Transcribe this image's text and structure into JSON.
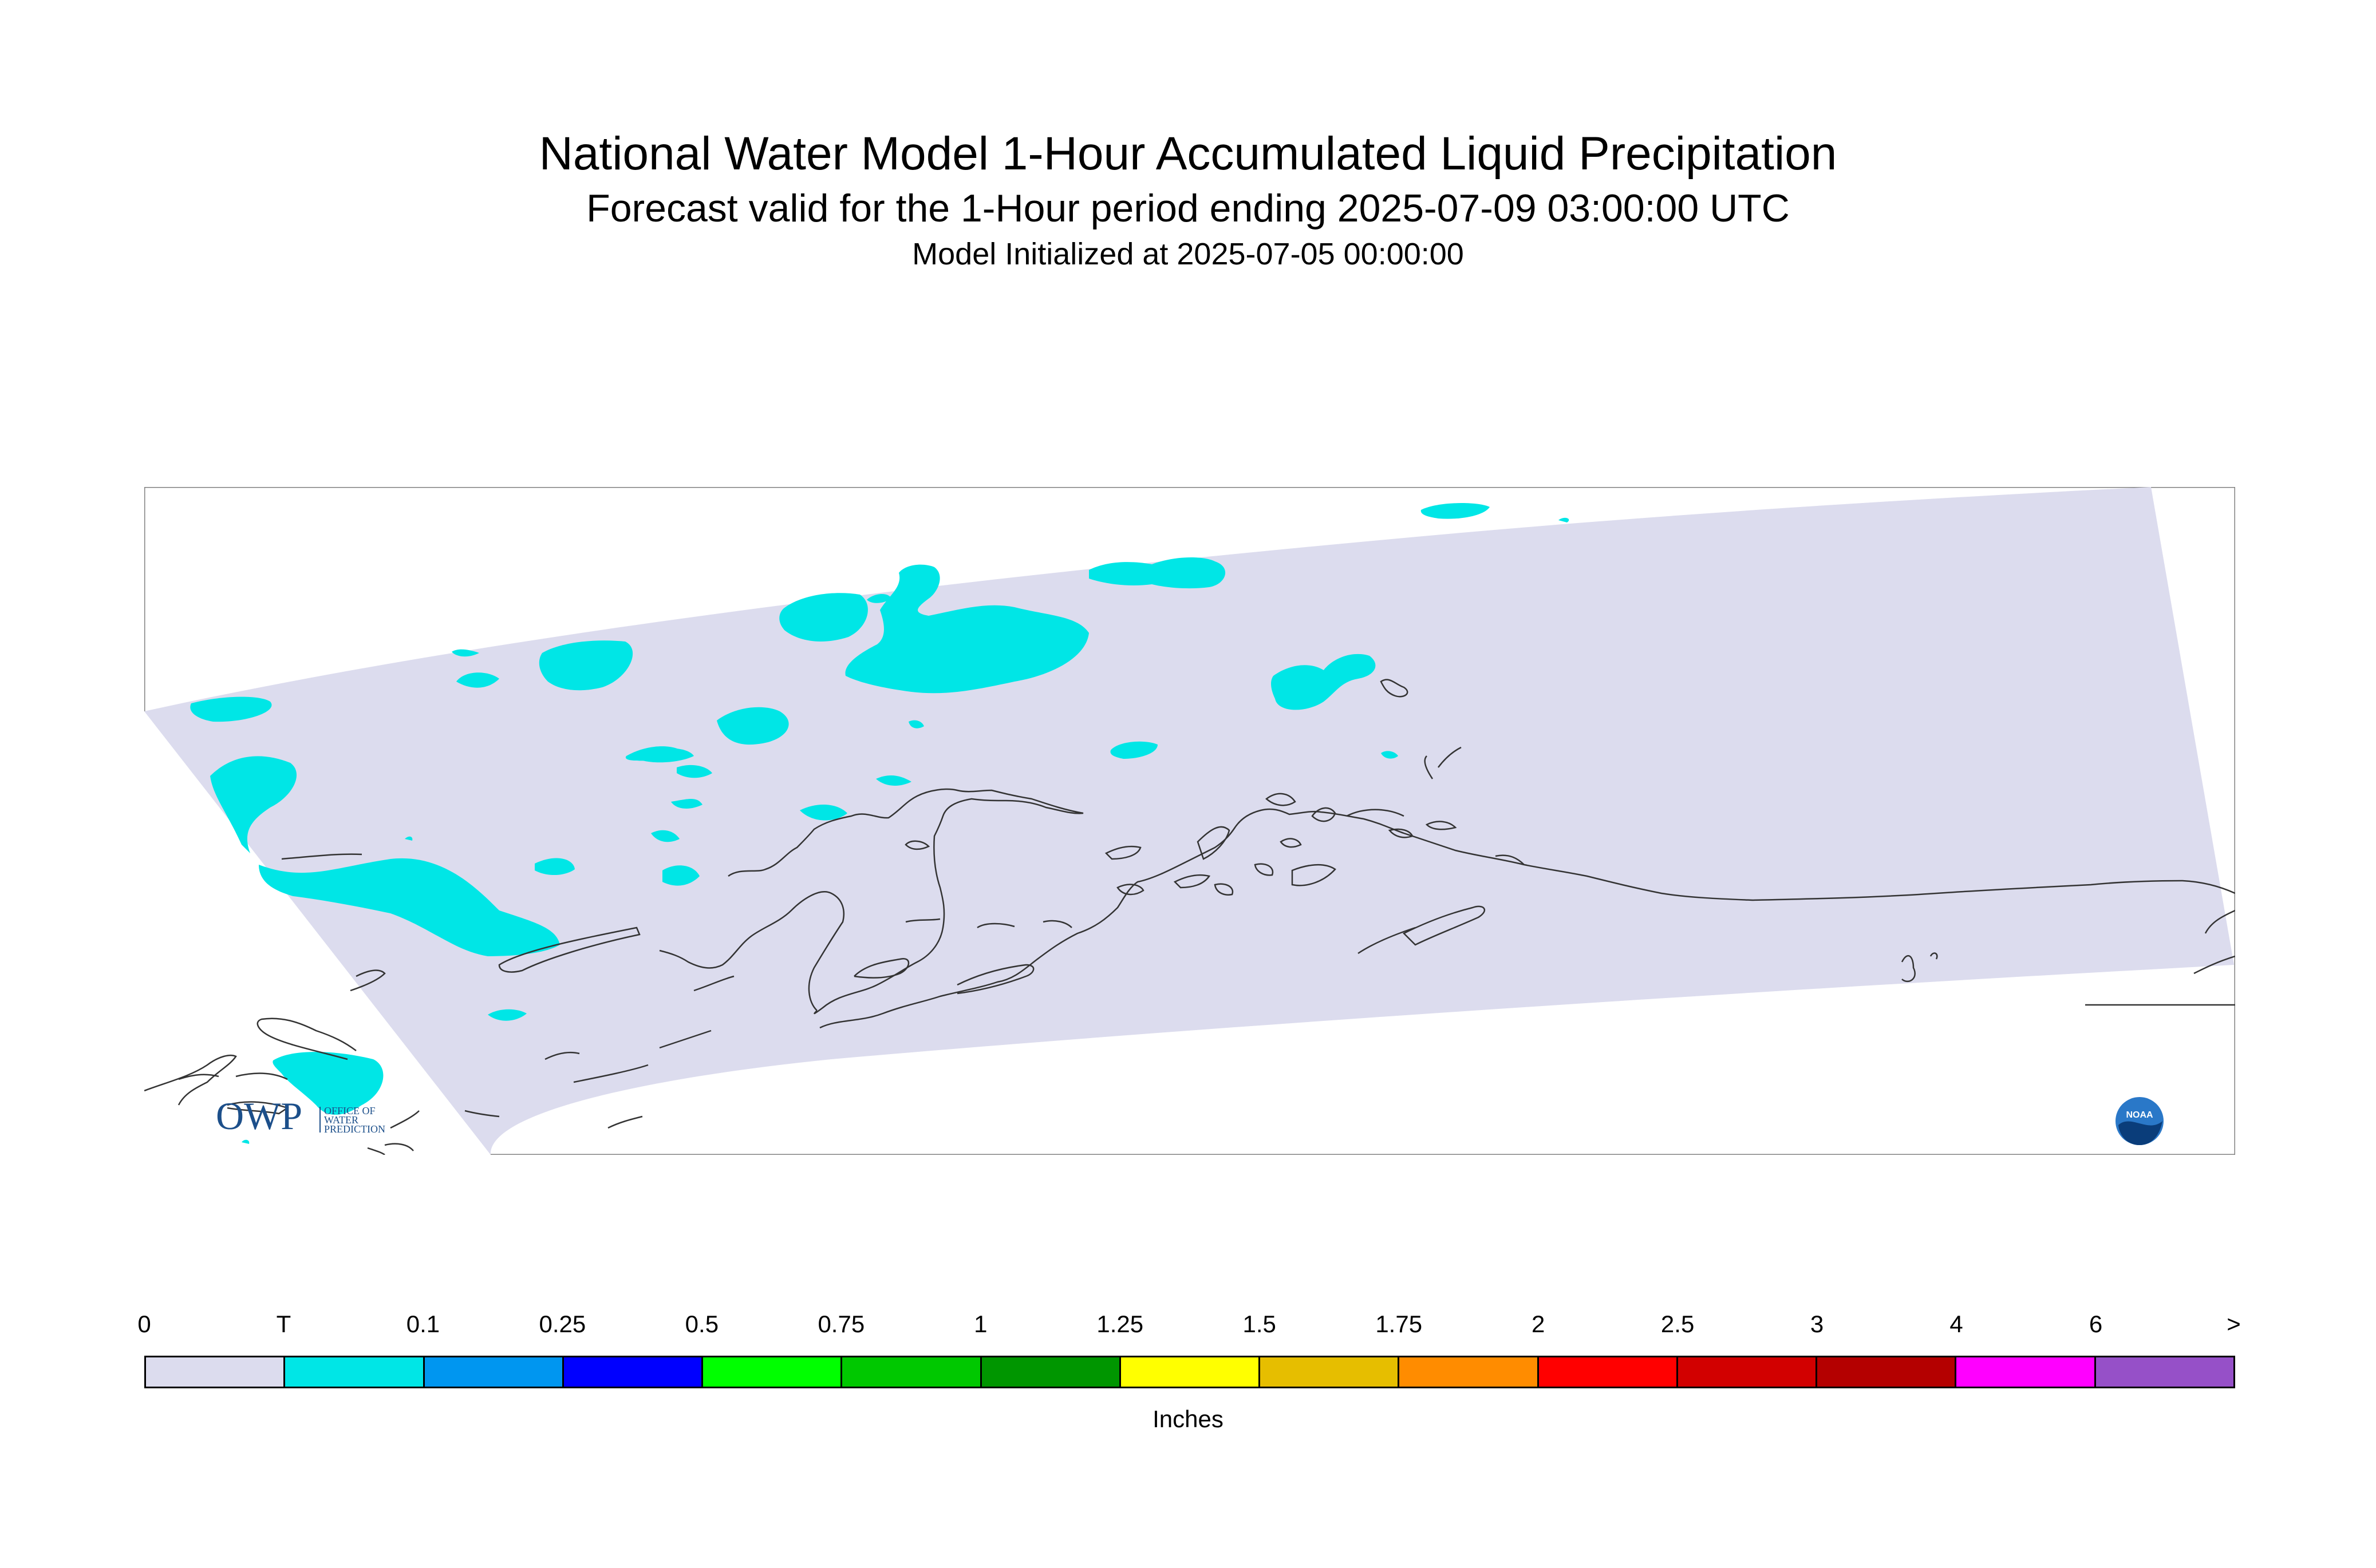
{
  "title": "National Water Model 1-Hour Accumulated Liquid Precipitation",
  "subtitle": "Forecast valid for the 1-Hour period ending 2025-07-09 03:00:00 UTC",
  "init_line": "Model Initialized at 2025-07-05 00:00:00",
  "logos": {
    "owp_text": "OWP",
    "owp_sub": [
      "OFFICE OF",
      "WATER",
      "PREDICTION"
    ],
    "noaa_text": "NOAA"
  },
  "map": {
    "region": "Alaska",
    "domain_color": "#dcdcee",
    "precip_color": "#00e6e6",
    "coast_color": "#333333"
  },
  "legend": {
    "labels": [
      "0",
      "T",
      "0.1",
      "0.25",
      "0.5",
      "0.75",
      "1",
      "1.25",
      "1.5",
      "1.75",
      "2",
      "2.5",
      "3",
      "4",
      "6",
      ">"
    ],
    "colors": [
      "#dcdcee",
      "#00e6e6",
      "#0096f0",
      "#0000ff",
      "#00ff00",
      "#00c800",
      "#009600",
      "#ffff00",
      "#e6be00",
      "#ff8c00",
      "#ff0000",
      "#d20000",
      "#b40000",
      "#ff00ff",
      "#9650c8"
    ],
    "units": "Inches"
  }
}
